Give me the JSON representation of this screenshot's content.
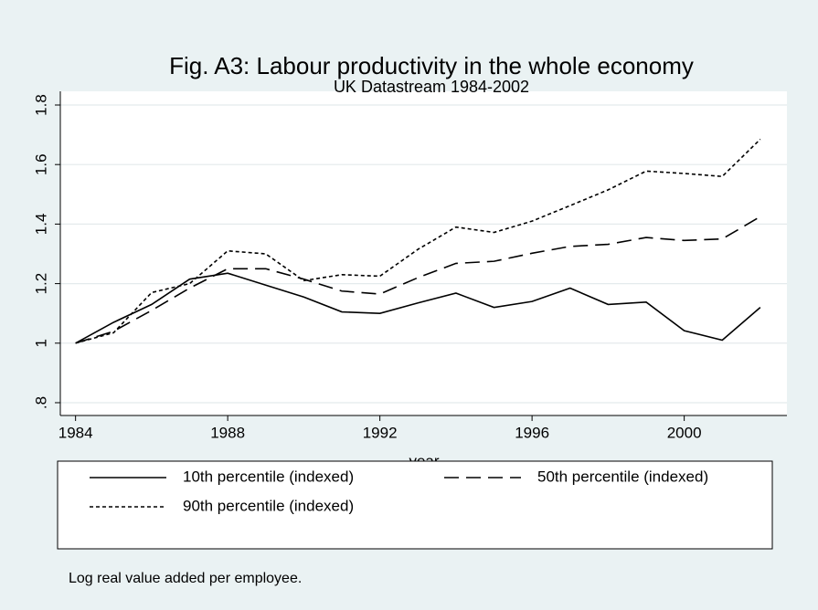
{
  "chart_data": {
    "type": "line",
    "title": "Fig. A3: Labour productivity in the whole economy",
    "subtitle": "UK Datastream 1984-2002",
    "x_label": "year",
    "note": "Log real value added per employee.",
    "x": [
      1984,
      1985,
      1986,
      1987,
      1988,
      1989,
      1990,
      1991,
      1992,
      1993,
      1994,
      1995,
      1996,
      1997,
      1998,
      1999,
      2000,
      2001,
      2002
    ],
    "series": [
      {
        "name": "10th percentile (indexed)",
        "color": "#000000",
        "dash": "solid",
        "values": [
          1.0,
          1.07,
          1.13,
          1.215,
          1.235,
          1.195,
          1.155,
          1.105,
          1.1,
          1.135,
          1.168,
          1.12,
          1.14,
          1.185,
          1.13,
          1.138,
          1.042,
          1.01,
          1.12
        ]
      },
      {
        "name": "50th percentile (indexed)",
        "color": "#000000",
        "dash": "longdash",
        "values": [
          1.0,
          1.04,
          1.11,
          1.185,
          1.25,
          1.25,
          1.215,
          1.175,
          1.165,
          1.22,
          1.268,
          1.275,
          1.302,
          1.325,
          1.332,
          1.355,
          1.345,
          1.35,
          1.425
        ]
      },
      {
        "name": "90th percentile (indexed)",
        "color": "#000000",
        "dash": "shortdash",
        "values": [
          1.0,
          1.035,
          1.17,
          1.2,
          1.31,
          1.3,
          1.21,
          1.23,
          1.225,
          1.315,
          1.39,
          1.372,
          1.41,
          1.462,
          1.515,
          1.578,
          1.57,
          1.56,
          1.685
        ]
      }
    ],
    "xlim": [
      1983.6,
      2002.7
    ],
    "xticks": [
      1984,
      1988,
      1992,
      1996,
      2000
    ],
    "ylim": [
      0.757,
      1.846
    ],
    "yticks": [
      {
        "value": 0.8,
        "label": ".8"
      },
      1,
      1.2,
      1.4,
      1.6,
      1.8
    ],
    "grid": true
  }
}
